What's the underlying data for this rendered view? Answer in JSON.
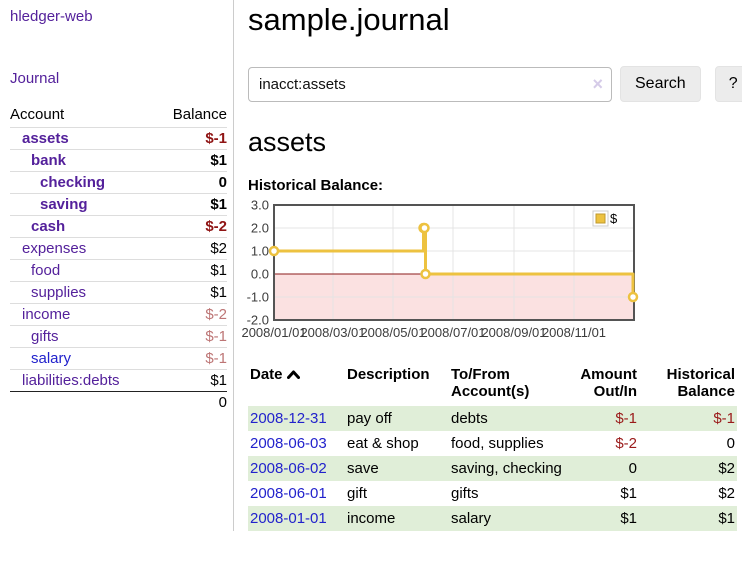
{
  "sidebar": {
    "brand": "hledger-web",
    "nav": {
      "journal": "Journal"
    },
    "table": {
      "account_header": "Account",
      "balance_header": "Balance",
      "accounts": [
        {
          "name": "assets",
          "balance": "$-1",
          "depth": 1,
          "bold": true,
          "name_color": "purple",
          "balance_color": "negative"
        },
        {
          "name": "bank",
          "balance": "$1",
          "depth": 2,
          "bold": true,
          "name_color": "purple",
          "balance_color": "black"
        },
        {
          "name": "checking",
          "balance": "0",
          "depth": 3,
          "bold": true,
          "name_color": "purple",
          "balance_color": "black"
        },
        {
          "name": "saving",
          "balance": "$1",
          "depth": 3,
          "bold": true,
          "name_color": "purple",
          "balance_color": "black"
        },
        {
          "name": "cash",
          "balance": "$-2",
          "depth": 2,
          "bold": true,
          "name_color": "purple",
          "balance_color": "negative"
        },
        {
          "name": "expenses",
          "balance": "$2",
          "depth": 1,
          "bold": false,
          "name_color": "purple",
          "balance_color": "black"
        },
        {
          "name": "food",
          "balance": "$1",
          "depth": 2,
          "bold": false,
          "name_color": "purple",
          "balance_color": "black"
        },
        {
          "name": "supplies",
          "balance": "$1",
          "depth": 2,
          "bold": false,
          "name_color": "purple",
          "balance_color": "black"
        },
        {
          "name": "income",
          "balance": "$-2",
          "depth": 1,
          "bold": false,
          "name_color": "purple",
          "balance_color": "rose"
        },
        {
          "name": "gifts",
          "balance": "$-1",
          "depth": 2,
          "bold": false,
          "name_color": "purple",
          "balance_color": "rose"
        },
        {
          "name": "salary",
          "balance": "$-1",
          "depth": 2,
          "bold": false,
          "name_color": "blue",
          "balance_color": "rose"
        },
        {
          "name": "liabilities:debts",
          "balance": "$1",
          "depth": 1,
          "bold": false,
          "name_color": "purple",
          "balance_color": "black"
        }
      ],
      "total": "0"
    }
  },
  "header": {
    "title": "sample.journal"
  },
  "search": {
    "query": "inacct:assets",
    "clear_icon": "×",
    "search_label": "Search",
    "help_label": "?"
  },
  "account_page": {
    "heading": "assets",
    "chart_label": "Historical Balance:"
  },
  "chart_data": {
    "type": "line",
    "title": "Historical Balance",
    "step": true,
    "series": [
      {
        "name": "$",
        "points": [
          [
            "2008-01-01",
            1
          ],
          [
            "2008-06-01",
            2
          ],
          [
            "2008-06-02",
            2
          ],
          [
            "2008-06-03",
            0
          ],
          [
            "2008-12-31",
            -1
          ]
        ]
      }
    ],
    "xrange": [
      "2008-01-01",
      "2009-01-01"
    ],
    "ylim": [
      -2,
      3
    ],
    "yticks": [
      3,
      2,
      1,
      0,
      -1,
      -2
    ],
    "ytick_labels": [
      "3.0",
      "2.0",
      "1.0",
      "0.0",
      "-1.0",
      "-2.0"
    ],
    "xticks": [
      "2008-01-01",
      "2008-03-01",
      "2008-05-01",
      "2008-07-01",
      "2008-09-01",
      "2008-11-01"
    ],
    "xtick_labels": [
      "2008/01/01",
      "2008/03/01",
      "2008/05/01",
      "2008/07/01",
      "2008/09/01",
      "2008/11/01"
    ],
    "legend_position": "top-right",
    "grid": true,
    "colors": {
      "line": "#edc240",
      "marker_fill": "#ffffff",
      "negative_region": "#fbe1e1",
      "zero_line": "#8b1a1a",
      "grid": "#e4e4e4",
      "border": "#545454",
      "tick_text": "#3c3c3c"
    }
  },
  "transactions": {
    "columns": [
      "Date",
      "Description",
      "To/From Account(s)",
      "Amount Out/In",
      "Historical Balance"
    ],
    "sort_indicator": "ascending",
    "rows": [
      {
        "date": "2008-12-31",
        "description": "pay off",
        "accounts": "debts",
        "amount": "$-1",
        "amount_negative": true,
        "balance": "$-1",
        "balance_negative": true,
        "highlight": true
      },
      {
        "date": "2008-06-03",
        "description": "eat & shop",
        "accounts": "food, supplies",
        "amount": "$-2",
        "amount_negative": true,
        "balance": "0",
        "balance_negative": false,
        "highlight": false
      },
      {
        "date": "2008-06-02",
        "description": "save",
        "accounts": "saving, checking",
        "amount": "0",
        "amount_negative": false,
        "balance": "$2",
        "balance_negative": false,
        "highlight": true
      },
      {
        "date": "2008-06-01",
        "description": "gift",
        "accounts": "gifts",
        "amount": "$1",
        "amount_negative": false,
        "balance": "$2",
        "balance_negative": false,
        "highlight": false
      },
      {
        "date": "2008-01-01",
        "description": "income",
        "accounts": "salary",
        "amount": "$1",
        "amount_negative": false,
        "balance": "$1",
        "balance_negative": false,
        "highlight": true
      }
    ]
  }
}
